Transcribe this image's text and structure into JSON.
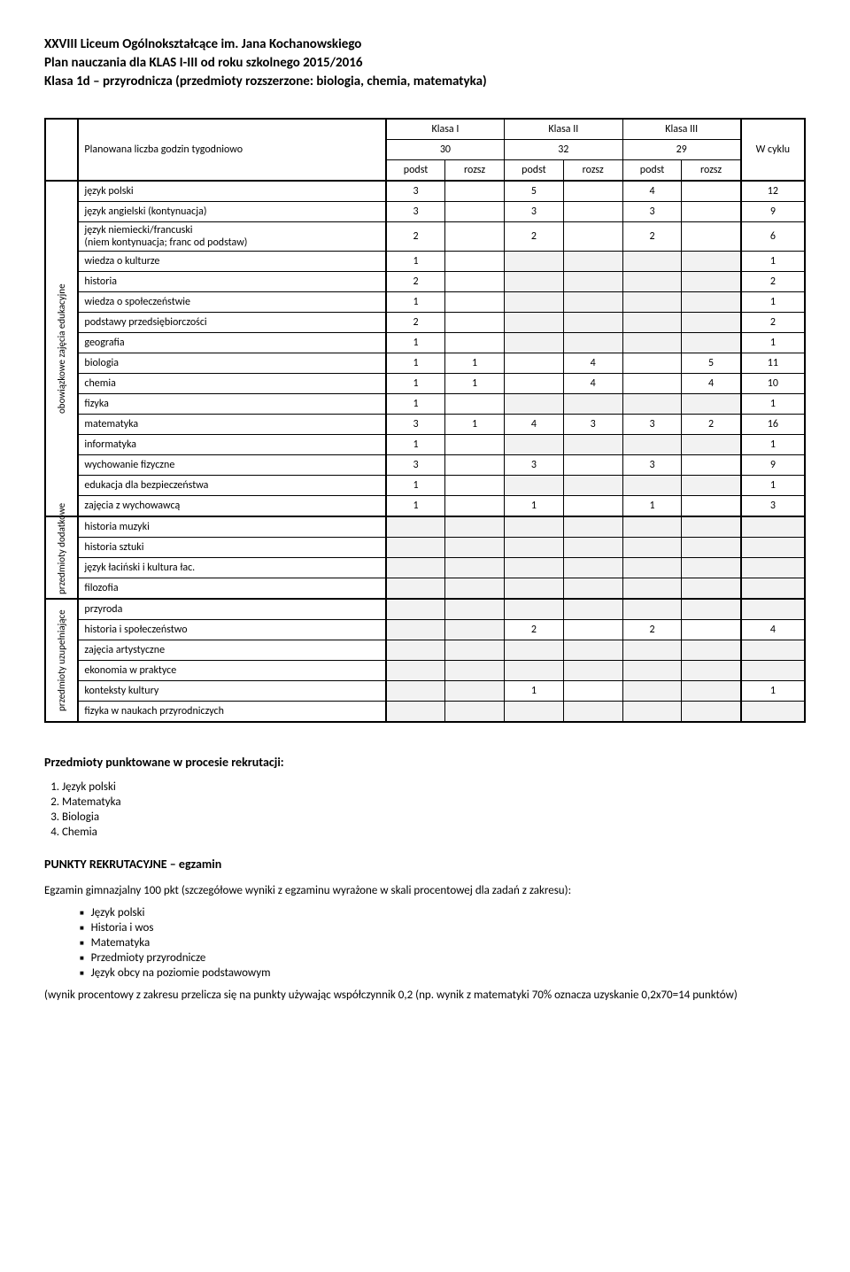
{
  "header": {
    "line1": "XXVIII Liceum Ogólnokształcące im. Jana Kochanowskiego",
    "line2": "Plan nauczania dla KLAS I-III od roku szkolnego 2015/2016",
    "line3": "Klasa 1d – przyrodnicza  (przedmioty rozszerzone: biologia, chemia, matematyka)"
  },
  "table": {
    "plan_label": "Planowana liczba godzin tygodniowo",
    "klasa1": "Klasa I",
    "klasa2": "Klasa II",
    "klasa3": "Klasa III",
    "cykl_label": "W cyklu",
    "totals": {
      "k1": "30",
      "k2": "32",
      "k3": "29"
    },
    "podst": "podst",
    "rozsz": "rozsz",
    "group1_label": "obowiązkowe zajęcia edukacyjne",
    "group2_label": "przedmioty dodatkowe",
    "group3_label": "przedmioty uzupełniające",
    "rows_group1": [
      {
        "label": "język polski",
        "v": [
          "3",
          "",
          "5",
          "",
          "4",
          "",
          "12"
        ]
      },
      {
        "label": "język angielski (kontynuacja)",
        "v": [
          "3",
          "",
          "3",
          "",
          "3",
          "",
          "9"
        ]
      },
      {
        "label": "język niemiecki/francuski\n(niem kontynuacja; franc od podstaw)",
        "v": [
          "2",
          "",
          "2",
          "",
          "2",
          "",
          "6"
        ]
      },
      {
        "label": "wiedza o kulturze",
        "v": [
          "1",
          "",
          "",
          "",
          "",
          "",
          "1"
        ],
        "shade": [
          2,
          3,
          4,
          5
        ]
      },
      {
        "label": "historia",
        "v": [
          "2",
          "",
          "",
          "",
          "",
          "",
          "2"
        ],
        "shade": [
          2,
          3,
          4,
          5
        ]
      },
      {
        "label": "wiedza o społeczeństwie",
        "v": [
          "1",
          "",
          "",
          "",
          "",
          "",
          "1"
        ],
        "shade": [
          2,
          3,
          4,
          5
        ]
      },
      {
        "label": "podstawy przedsiębiorczości",
        "v": [
          "2",
          "",
          "",
          "",
          "",
          "",
          "2"
        ],
        "shade": [
          2,
          3,
          4,
          5
        ]
      },
      {
        "label": "geografia",
        "v": [
          "1",
          "",
          "",
          "",
          "",
          "",
          "1"
        ],
        "shade": [
          2,
          3,
          4,
          5
        ]
      },
      {
        "label": "biologia",
        "v": [
          "1",
          "1",
          "",
          "4",
          "",
          "5",
          "11"
        ]
      },
      {
        "label": "chemia",
        "v": [
          "1",
          "1",
          "",
          "4",
          "",
          "4",
          "10"
        ]
      },
      {
        "label": "fizyka",
        "v": [
          "1",
          "",
          "",
          "",
          "",
          "",
          "1"
        ],
        "shade": [
          2,
          3,
          4,
          5
        ]
      },
      {
        "label": "matematyka",
        "v": [
          "3",
          "1",
          "4",
          "3",
          "3",
          "2",
          "16"
        ]
      },
      {
        "label": "informatyka",
        "v": [
          "1",
          "",
          "",
          "",
          "",
          "",
          "1"
        ],
        "shade": [
          2,
          3,
          4,
          5
        ]
      },
      {
        "label": "wychowanie fizyczne",
        "v": [
          "3",
          "",
          "3",
          "",
          "3",
          "",
          "9"
        ]
      },
      {
        "label": "edukacja dla bezpieczeństwa",
        "v": [
          "1",
          "",
          "",
          "",
          "",
          "",
          "1"
        ],
        "shade": [
          2,
          3,
          4,
          5
        ]
      },
      {
        "label": "zajęcia z wychowawcą",
        "v": [
          "1",
          "",
          "1",
          "",
          "1",
          "",
          "3"
        ]
      }
    ],
    "rows_group2": [
      {
        "label": "historia muzyki",
        "v": [
          "",
          "",
          "",
          "",
          "",
          "",
          ""
        ],
        "shade": [
          0,
          1,
          2,
          3,
          4,
          5,
          6
        ]
      },
      {
        "label": "historia sztuki",
        "v": [
          "",
          "",
          "",
          "",
          "",
          "",
          ""
        ],
        "shade": [
          0,
          1,
          2,
          3,
          4,
          5,
          6
        ]
      },
      {
        "label": "język łaciński i kultura łac.",
        "v": [
          "",
          "",
          "",
          "",
          "",
          "",
          ""
        ],
        "shade": [
          0,
          1,
          2,
          3,
          4,
          5,
          6
        ]
      },
      {
        "label": "filozofia",
        "v": [
          "",
          "",
          "",
          "",
          "",
          "",
          ""
        ],
        "shade": [
          0,
          1,
          2,
          3,
          4,
          5,
          6
        ]
      }
    ],
    "rows_group3": [
      {
        "label": "przyroda",
        "v": [
          "",
          "",
          "",
          "",
          "",
          "",
          ""
        ],
        "shade": [
          0,
          1,
          2,
          3,
          4,
          5,
          6
        ]
      },
      {
        "label": "historia i społeczeństwo",
        "v": [
          "",
          "",
          "2",
          "",
          "2",
          "",
          "4"
        ],
        "shade": [
          0,
          1
        ]
      },
      {
        "label": "zajęcia artystyczne",
        "v": [
          "",
          "",
          "",
          "",
          "",
          "",
          ""
        ],
        "shade": [
          0,
          1,
          2,
          3,
          4,
          5,
          6
        ]
      },
      {
        "label": "ekonomia w praktyce",
        "v": [
          "",
          "",
          "",
          "",
          "",
          "",
          ""
        ],
        "shade": [
          0,
          1,
          2,
          3,
          4,
          5,
          6
        ]
      },
      {
        "label": "konteksty kultury",
        "v": [
          "",
          "",
          "1",
          "",
          "",
          "",
          "1"
        ],
        "shade": [
          0,
          1,
          4,
          5
        ]
      },
      {
        "label": "fizyka w naukach przyrodniczych",
        "v": [
          "",
          "",
          "",
          "",
          "",
          "",
          ""
        ],
        "shade": [
          0,
          1,
          2,
          3,
          4,
          5,
          6
        ]
      }
    ]
  },
  "punktowane": {
    "title": "Przedmioty punktowane w procesie rekrutacji:",
    "items": [
      "Język polski",
      "Matematyka",
      "Biologia",
      "Chemia"
    ]
  },
  "egzamin": {
    "title": "PUNKTY REKRUTACYJNE – egzamin",
    "desc": "Egzamin gimnazjalny 100 pkt (szczegółowe wyniki z egzaminu wyrażone w skali procentowej dla zadań z zakresu):",
    "items": [
      "Język polski",
      "Historia i wos",
      "Matematyka",
      "Przedmioty przyrodnicze",
      "Język obcy na poziomie podstawowym"
    ],
    "footer": "(wynik procentowy z zakresu przelicza się na punkty używając współczynnik 0,2 (np. wynik z matematyki 70% oznacza uzyskanie 0,2x70=14 punktów)"
  },
  "styling": {
    "page_bg": "#ffffff",
    "text_color": "#000000",
    "shade_color": "#f2f2f2",
    "border_color": "#000000",
    "font_family": "Calibri, Arial, sans-serif",
    "header_fontsize": 15,
    "body_fontsize": 13,
    "table_fontsize": 12
  }
}
